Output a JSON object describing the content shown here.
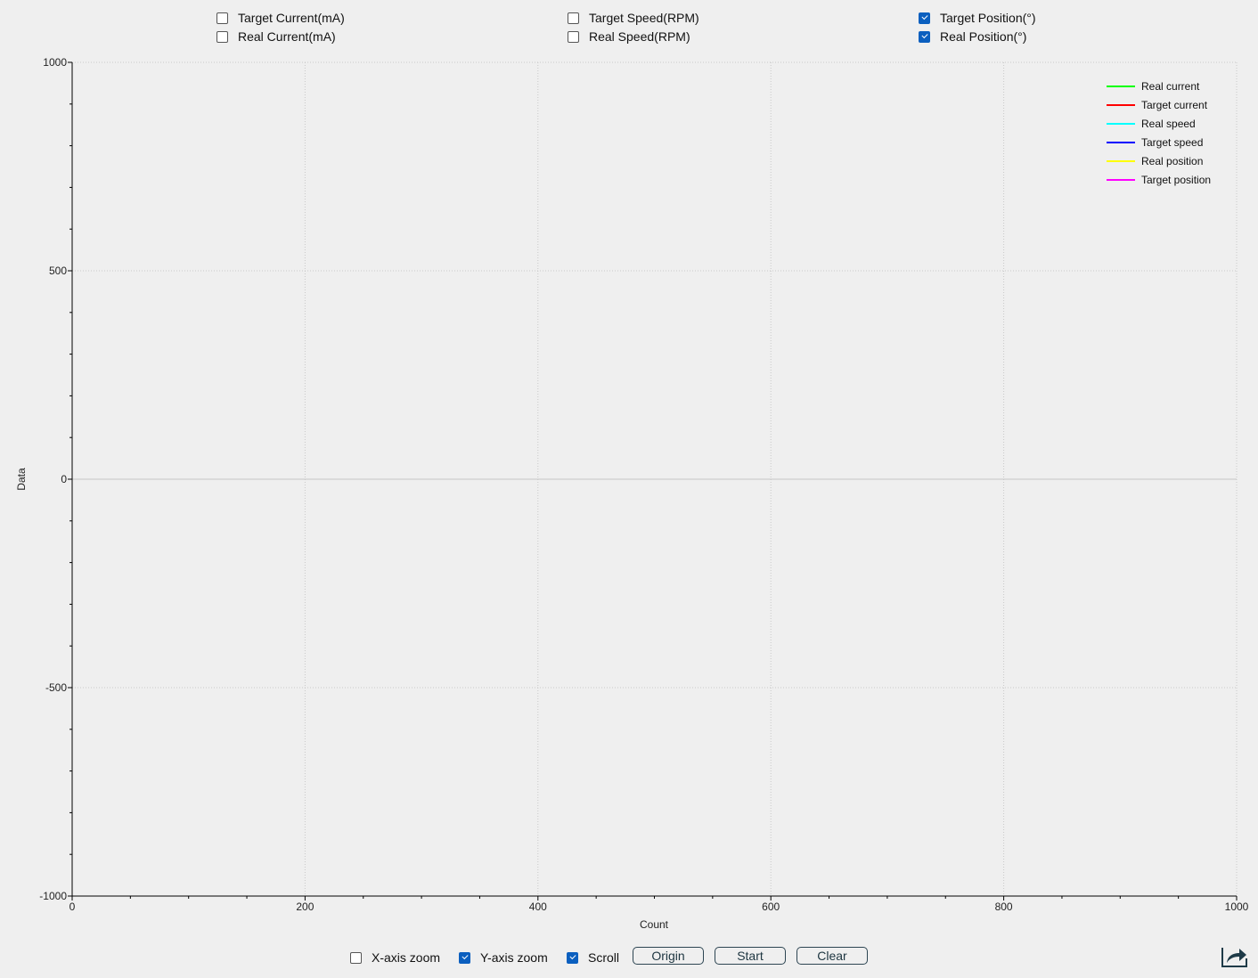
{
  "series_toggles": [
    {
      "label": "Target Current(mA)",
      "checked": false
    },
    {
      "label": "Real Current(mA)",
      "checked": false
    },
    {
      "label": "Target Speed(RPM)",
      "checked": false
    },
    {
      "label": "Real Speed(RPM)",
      "checked": false
    },
    {
      "label": "Target Position(°)",
      "checked": true
    },
    {
      "label": "Real Position(°)",
      "checked": true
    }
  ],
  "controls": {
    "x_zoom": {
      "label": "X-axis zoom",
      "checked": false
    },
    "y_zoom": {
      "label": "Y-axis zoom",
      "checked": true
    },
    "scroll": {
      "label": "Scroll",
      "checked": true
    },
    "origin_label": "Origin",
    "start_label": "Start",
    "clear_label": "Clear",
    "export_icon": "export-share-icon"
  },
  "chart_data": {
    "type": "line",
    "xlabel": "Count",
    "ylabel": "Data",
    "xlim": [
      0,
      1000
    ],
    "ylim": [
      -1000,
      1000
    ],
    "xticks": [
      "0",
      "200",
      "400",
      "600",
      "800",
      "1000"
    ],
    "yticks": [
      "1000",
      "500",
      "0",
      "-500",
      "-1000"
    ],
    "grid": true,
    "legend_placement": "top-right",
    "series": [
      {
        "name": "Real current",
        "color": "#00ff00",
        "values": []
      },
      {
        "name": "Target current",
        "color": "#ff0000",
        "values": []
      },
      {
        "name": "Real speed",
        "color": "#00ffff",
        "values": []
      },
      {
        "name": "Target speed",
        "color": "#0000ff",
        "values": []
      },
      {
        "name": "Real position",
        "color": "#ffff00",
        "values": []
      },
      {
        "name": "Target position",
        "color": "#ff00ff",
        "values": []
      }
    ]
  }
}
